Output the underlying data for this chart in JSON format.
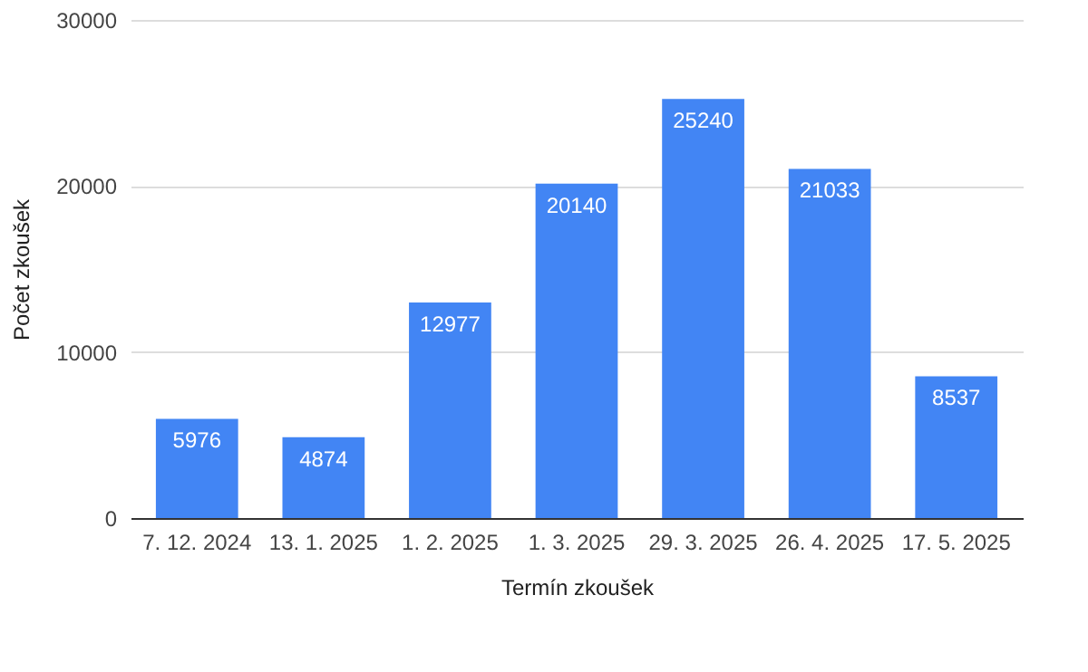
{
  "chart_data": {
    "type": "bar",
    "xlabel": "Termín zkoušek",
    "ylabel": "Počet zkoušek",
    "categories": [
      "7. 12. 2024",
      "13. 1. 2025",
      "1. 2. 2025",
      "1. 3. 2025",
      "29. 3. 2025",
      "26. 4. 2025",
      "17. 5. 2025"
    ],
    "values": [
      5976,
      4874,
      12977,
      20140,
      25240,
      21033,
      8537
    ],
    "color": "#4285f4",
    "ylim": [
      0,
      30000
    ],
    "yticks": [
      0,
      10000,
      20000,
      30000
    ],
    "grid": "y",
    "data_labels": true
  }
}
